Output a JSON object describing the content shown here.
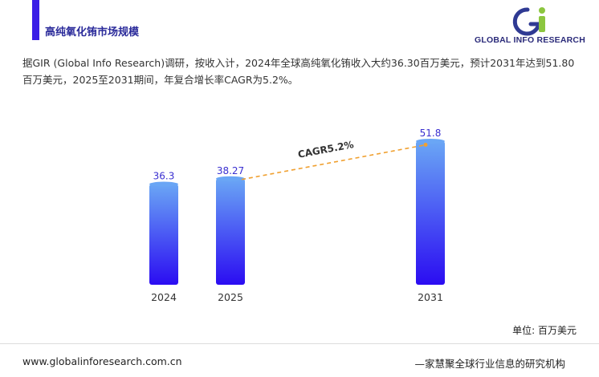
{
  "header": {
    "title": "高纯氧化铕市场规模",
    "logo_text": "GLOBAL INFO RESEARCH"
  },
  "summary": "据GIR (Global Info Research)调研，按收入计，2024年全球高纯氧化铕收入大约36.30百万美元，预计2031年达到51.80百万美元，2025至2031期间，年复合增长率CAGR为5.2%。",
  "unit_label": "单位: 百万美元",
  "footer": {
    "url": "www.globalinforesearch.com.cn",
    "slogan": "—家慧聚全球行业信息的研究机构"
  },
  "colors": {
    "accent": "#3b1ee6",
    "bar_top": "#6aa6f5",
    "bar_bottom": "#2b0cf2",
    "value_label": "#3a2fd0",
    "cagr_line": "#f0a030"
  },
  "chart_data": {
    "type": "bar",
    "categories": [
      "2024",
      "2025",
      "2031"
    ],
    "values": [
      36.3,
      38.27,
      51.8
    ],
    "value_labels": [
      "36.3",
      "38.27",
      "51.8"
    ],
    "annotation": {
      "text": "CAGR5.2%",
      "from": "2025",
      "to": "2031"
    },
    "title": "",
    "xlabel": "",
    "ylabel": "",
    "ylim": [
      0,
      55
    ],
    "grid": false,
    "legend": "none"
  }
}
